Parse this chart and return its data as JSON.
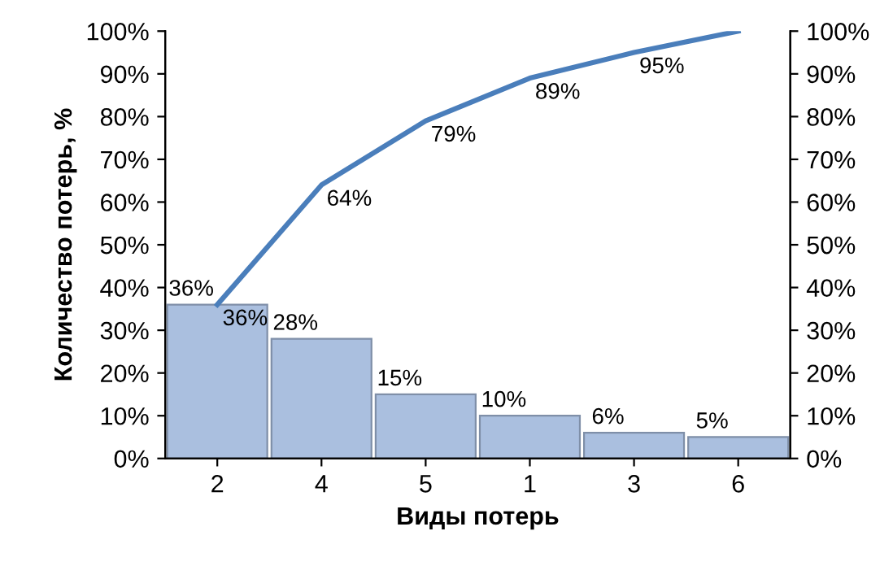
{
  "chart_data": {
    "type": "bar",
    "xlabel": "Виды потерь",
    "ylabel": "Количество потерь, %",
    "categories": [
      "2",
      "4",
      "5",
      "1",
      "3",
      "6"
    ],
    "series": [
      {
        "color": "#aabfdf",
        "values": [
          36,
          28,
          15,
          10,
          6,
          5
        ],
        "value_labels": [
          "36%",
          "28%",
          "15%",
          "10%",
          "6%",
          "5%"
        ]
      },
      {
        "type": "line",
        "axis": "y2",
        "color": "#4a7ebb",
        "values": [
          36,
          64,
          79,
          89,
          95,
          100
        ],
        "value_labels": [
          "36%",
          "64%",
          "79%",
          "89%",
          "95%",
          null
        ]
      }
    ],
    "ylim": [
      0,
      100
    ],
    "yticks": [
      {
        "value": 0,
        "label": "0%"
      },
      {
        "value": 10,
        "label": "10%"
      },
      {
        "value": 20,
        "label": "20%"
      },
      {
        "value": 30,
        "label": "30%"
      },
      {
        "value": 40,
        "label": "40%"
      },
      {
        "value": 50,
        "label": "50%"
      },
      {
        "value": 60,
        "label": "60%"
      },
      {
        "value": 70,
        "label": "70%"
      },
      {
        "value": 80,
        "label": "80%"
      },
      {
        "value": 90,
        "label": "90%"
      },
      {
        "value": 100,
        "label": "100%"
      }
    ],
    "y2lim": [
      0,
      100
    ],
    "y2ticks": [
      {
        "value": 0,
        "label": "0%"
      },
      {
        "value": 10,
        "label": "10%"
      },
      {
        "value": 20,
        "label": "20%"
      },
      {
        "value": 30,
        "label": "30%"
      },
      {
        "value": 40,
        "label": "40%"
      },
      {
        "value": 50,
        "label": "50%"
      },
      {
        "value": 60,
        "label": "60%"
      },
      {
        "value": 70,
        "label": "70%"
      },
      {
        "value": 80,
        "label": "80%"
      },
      {
        "value": 90,
        "label": "90%"
      },
      {
        "value": 100,
        "label": "100%"
      }
    ],
    "grid": false,
    "marker": "none",
    "line_style": "solid"
  }
}
